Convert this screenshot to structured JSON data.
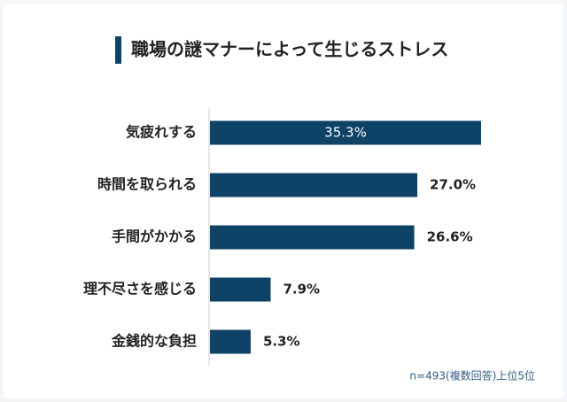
{
  "chart_data": {
    "type": "hbar",
    "title": "職場の謎マナーによって生じるストレス",
    "categories": [
      "気疲れする",
      "時間を取られる",
      "手間がかかる",
      "理不尽さを感じる",
      "金銭的な負担"
    ],
    "values": [
      35.3,
      27.0,
      26.6,
      7.9,
      5.3
    ],
    "value_labels": [
      "35.3%",
      "27.0%",
      "26.6%",
      "7.9%",
      "5.3%"
    ],
    "color": "#0e4266",
    "note": "n=493(複数回答)上位5位"
  }
}
